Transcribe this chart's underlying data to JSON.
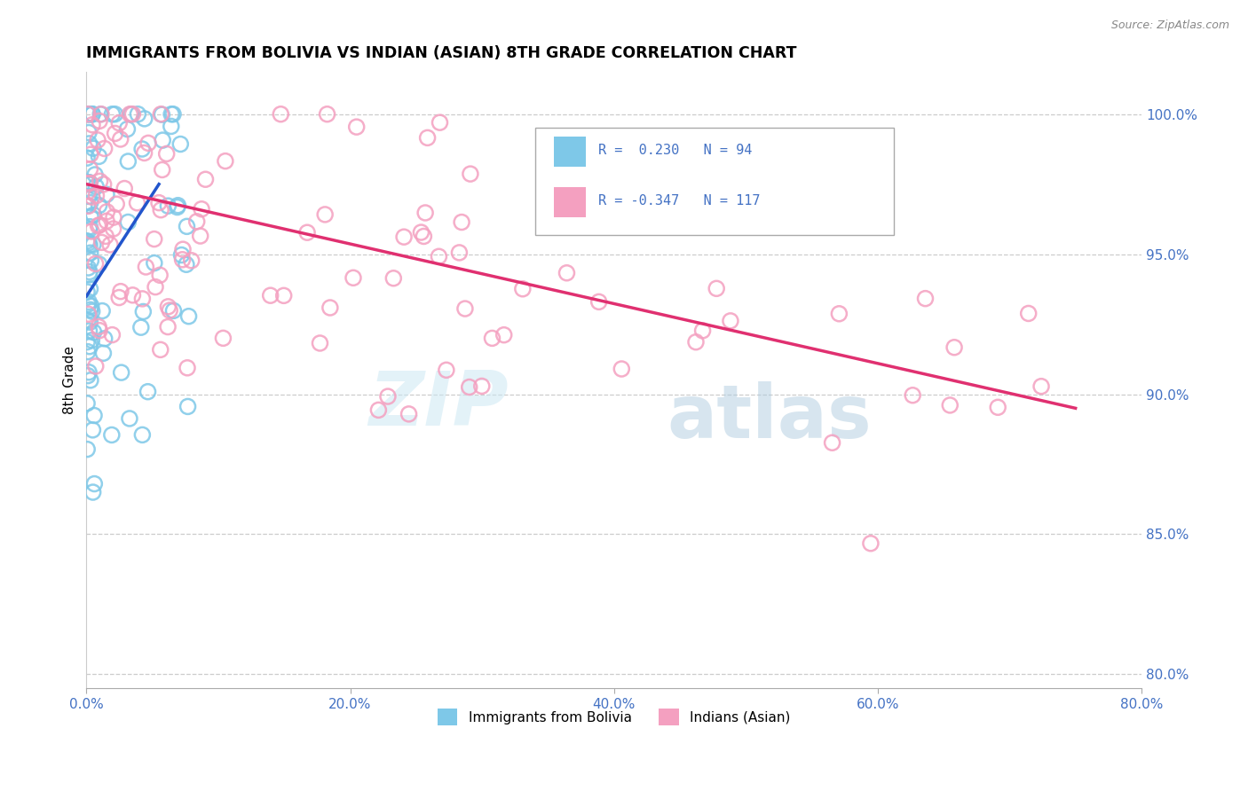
{
  "title": "IMMIGRANTS FROM BOLIVIA VS INDIAN (ASIAN) 8TH GRADE CORRELATION CHART",
  "source": "Source: ZipAtlas.com",
  "ylabel": "8th Grade",
  "x_tick_labels": [
    "0.0%",
    "20.0%",
    "40.0%",
    "60.0%",
    "80.0%"
  ],
  "y_right_labels": [
    "80.0%",
    "85.0%",
    "90.0%",
    "95.0%",
    "100.0%"
  ],
  "legend_labels": [
    "Immigrants from Bolivia",
    "Indians (Asian)"
  ],
  "legend_r1": "R =  0.230",
  "legend_n1": "N = 94",
  "legend_r2": "R = -0.347",
  "legend_n2": "N = 117",
  "blue_color": "#7ec8e8",
  "pink_color": "#f4a0c0",
  "blue_line_color": "#2255cc",
  "pink_line_color": "#e03070",
  "xlim": [
    0,
    80
  ],
  "ylim": [
    79.5,
    101.5
  ],
  "x_ticks": [
    0,
    20,
    40,
    60,
    80
  ],
  "y_ticks": [
    80,
    85,
    90,
    95,
    100
  ],
  "blue_trend_x": [
    0.0,
    5.5
  ],
  "blue_trend_y": [
    93.5,
    97.5
  ],
  "pink_trend_x": [
    0.0,
    75.0
  ],
  "pink_trend_y": [
    97.5,
    89.5
  ]
}
